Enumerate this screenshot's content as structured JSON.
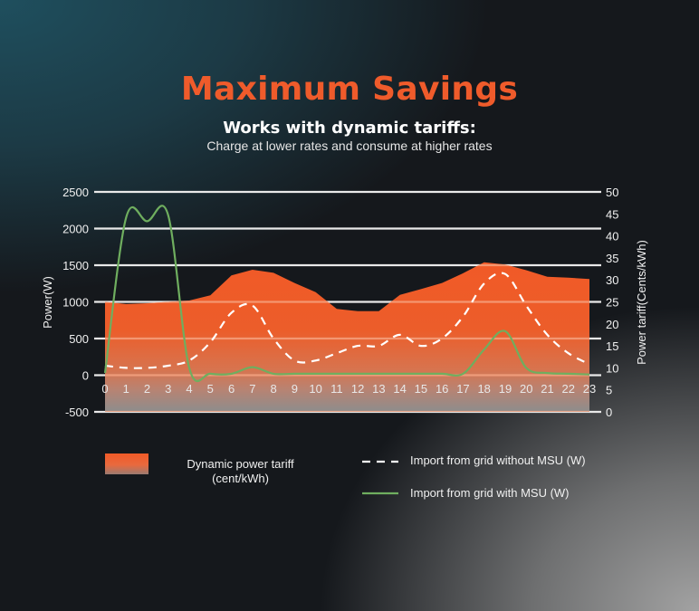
{
  "header": {
    "title": "Maximum Savings",
    "subtitle": "Works with dynamic tariffs:",
    "tagline": "Charge at lower rates and consume at higher rates"
  },
  "colors": {
    "title": "#ef5b2b",
    "tariff_area": "#f15a27",
    "green_line": "#6fae5f",
    "dashed_line": "#ffffff",
    "gridline": "#e8e8e8"
  },
  "legend": {
    "tariff_label_line1": "Dynamic power tariff",
    "tariff_label_line2": "(cent/kWh)",
    "without_msu": "Import from grid without MSU (W)",
    "with_msu": "Import from grid with MSU (W)"
  },
  "chart_data": {
    "type": "line",
    "title": "Maximum Savings",
    "subtitle": "Works with dynamic tariffs: Charge at lower rates and consume at higher rates",
    "xlabel": "",
    "ylabel": "Power(W)",
    "y2label": "Power tariff(Cents/kWh)",
    "x": [
      0,
      1,
      2,
      3,
      4,
      5,
      6,
      7,
      8,
      9,
      10,
      11,
      12,
      13,
      14,
      15,
      16,
      17,
      18,
      19,
      20,
      21,
      22,
      23
    ],
    "yticks": [
      2500,
      2000,
      1500,
      1000,
      500,
      0,
      -500
    ],
    "y2ticks": [
      50,
      45,
      40,
      35,
      30,
      25,
      20,
      15,
      10,
      5,
      0
    ],
    "ylim": [
      -500,
      2500
    ],
    "y2lim": [
      0,
      50
    ],
    "grid": true,
    "legend_position": "bottom",
    "series": [
      {
        "name": "Dynamic power tariff (cent/kWh)",
        "type": "area",
        "axis": "right",
        "values": [
          25,
          24.5,
          24.7,
          25,
          25.3,
          26.5,
          31,
          32.3,
          31.6,
          29.3,
          27.2,
          23.4,
          22.9,
          22.9,
          26.6,
          27.9,
          29.3,
          31.5,
          34,
          33.5,
          32.2,
          30.7,
          30.5,
          30.2
        ]
      },
      {
        "name": "Import from grid without MSU (W)",
        "type": "line",
        "style": "dashed",
        "axis": "left",
        "values": [
          130,
          100,
          100,
          130,
          200,
          450,
          850,
          950,
          500,
          200,
          200,
          300,
          400,
          400,
          550,
          400,
          500,
          800,
          1250,
          1380,
          950,
          550,
          300,
          150
        ]
      },
      {
        "name": "Import from grid with MSU (W)",
        "type": "line",
        "style": "solid",
        "axis": "left",
        "values": [
          30,
          2150,
          2100,
          2180,
          100,
          20,
          20,
          110,
          20,
          20,
          20,
          20,
          20,
          20,
          20,
          20,
          20,
          20,
          350,
          600,
          100,
          30,
          20,
          10
        ]
      }
    ]
  }
}
